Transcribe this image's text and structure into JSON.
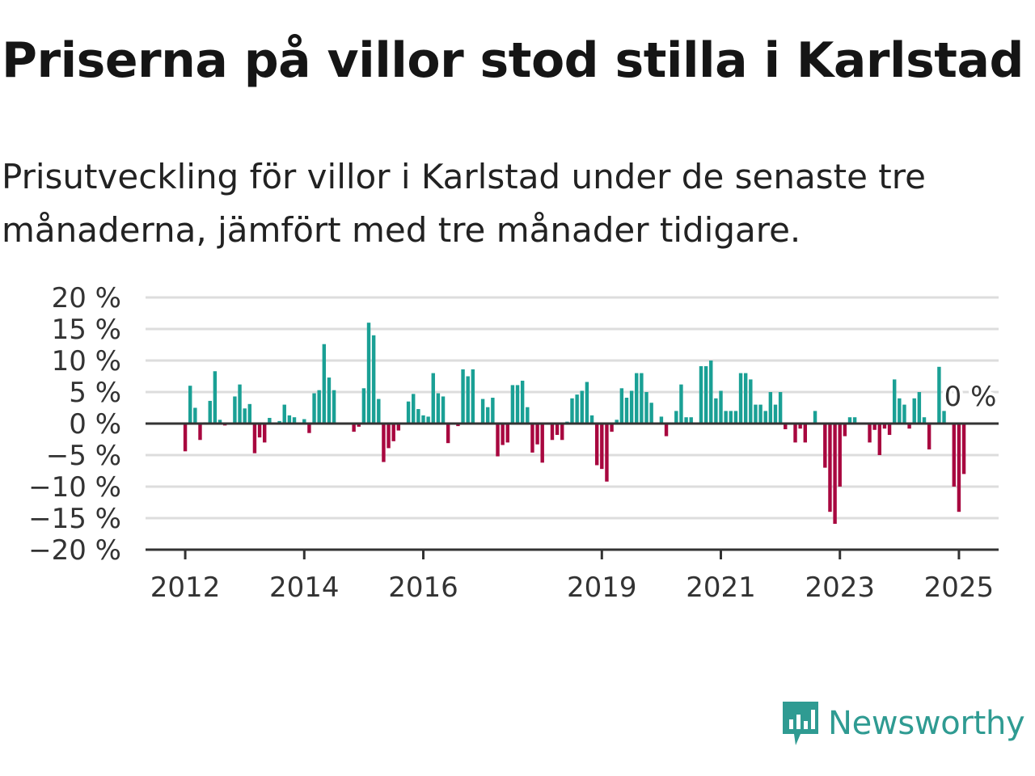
{
  "header": {
    "title": "Priserna på villor stod stilla i Karlstad",
    "subtitle": "Prisutveckling för villor i Karlstad under de senaste tre månaderna, jämfört med tre månader tidigare."
  },
  "brand": {
    "name": "Newsworthy",
    "icon": "newsworthy-logo-icon",
    "color": "#2f9b92"
  },
  "chart_data": {
    "type": "bar",
    "ylim": [
      -20,
      20
    ],
    "yticks": [
      20,
      15,
      10,
      5,
      0,
      -5,
      -10,
      -15,
      -20
    ],
    "ytick_labels": [
      "20 %",
      "15 %",
      "10 %",
      "5 %",
      "0 %",
      "−5 %",
      "−10 %",
      "−15 %",
      "−20 %"
    ],
    "xlim": [
      "2011-05",
      "2025-09"
    ],
    "xticks": [
      {
        "label": "2012",
        "date": "2012-01"
      },
      {
        "label": "2014",
        "date": "2014-01"
      },
      {
        "label": "2016",
        "date": "2016-01"
      },
      {
        "label": "2019",
        "date": "2019-01"
      },
      {
        "label": "2021",
        "date": "2021-01"
      },
      {
        "label": "2023",
        "date": "2023-01"
      },
      {
        "label": "2025",
        "date": "2025-01"
      }
    ],
    "grid": true,
    "positive_color": "#1aa095",
    "negative_color": "#a8073f",
    "annotation": {
      "text": "0 %",
      "date": "2024-11"
    },
    "series": [
      {
        "x": [
          "2012-01",
          "2012-02",
          "2012-03",
          "2012-04",
          "2012-05",
          "2012-06",
          "2012-07",
          "2012-08",
          "2012-09",
          "2012-10",
          "2012-11",
          "2012-12",
          "2013-01",
          "2013-02",
          "2013-03",
          "2013-04",
          "2013-05",
          "2013-06",
          "2013-07",
          "2013-08",
          "2013-09",
          "2013-10",
          "2013-11",
          "2013-12",
          "2014-01",
          "2014-02",
          "2014-03",
          "2014-04",
          "2014-05",
          "2014-06",
          "2014-07",
          "2014-08",
          "2014-09",
          "2014-10",
          "2014-11",
          "2014-12",
          "2015-01",
          "2015-02",
          "2015-03",
          "2015-04",
          "2015-05",
          "2015-06",
          "2015-07",
          "2015-08",
          "2015-09",
          "2015-10",
          "2015-11",
          "2015-12",
          "2016-01",
          "2016-02",
          "2016-03",
          "2016-04",
          "2016-05",
          "2016-06",
          "2016-07",
          "2016-08",
          "2016-09",
          "2016-10",
          "2016-11",
          "2016-12",
          "2017-01",
          "2017-02",
          "2017-03",
          "2017-04",
          "2017-05",
          "2017-06",
          "2017-07",
          "2017-08",
          "2017-09",
          "2017-10",
          "2017-11",
          "2017-12",
          "2018-01",
          "2018-02",
          "2018-03",
          "2018-04",
          "2018-05",
          "2018-06",
          "2018-07",
          "2018-08",
          "2018-09",
          "2018-10",
          "2018-11",
          "2018-12",
          "2019-01",
          "2019-02",
          "2019-03",
          "2019-04",
          "2019-05",
          "2019-06",
          "2019-07",
          "2019-08",
          "2019-09",
          "2019-10",
          "2019-11",
          "2019-12",
          "2020-01",
          "2020-02",
          "2020-03",
          "2020-04",
          "2020-05",
          "2020-06",
          "2020-07",
          "2020-08",
          "2020-09",
          "2020-10",
          "2020-11",
          "2020-12",
          "2021-01",
          "2021-02",
          "2021-03",
          "2021-04",
          "2021-05",
          "2021-06",
          "2021-07",
          "2021-08",
          "2021-09",
          "2021-10",
          "2021-11",
          "2021-12",
          "2022-01",
          "2022-02",
          "2022-03",
          "2022-04",
          "2022-05",
          "2022-06",
          "2022-07",
          "2022-08",
          "2022-09",
          "2022-10",
          "2022-11",
          "2022-12",
          "2023-01",
          "2023-02",
          "2023-03",
          "2023-04",
          "2023-05",
          "2023-06",
          "2023-07",
          "2023-08",
          "2023-09",
          "2023-10",
          "2023-11",
          "2023-12",
          "2024-01",
          "2024-02",
          "2024-03",
          "2024-04",
          "2024-05",
          "2024-06",
          "2024-07",
          "2024-08",
          "2024-09",
          "2024-10",
          "2024-11",
          "2024-12",
          "2025-01",
          "2025-02"
        ],
        "values": [
          -4.4,
          6.0,
          2.5,
          -2.6,
          0.2,
          3.6,
          8.3,
          0.6,
          -0.3,
          0.0,
          4.3,
          6.2,
          2.4,
          3.1,
          -4.7,
          -2.2,
          -3.0,
          0.9,
          0.0,
          0.4,
          3.0,
          1.3,
          1.0,
          0.0,
          0.7,
          -1.5,
          4.8,
          5.3,
          12.6,
          7.3,
          5.3,
          0.0,
          0.0,
          0.0,
          -1.3,
          -0.5,
          5.6,
          16.0,
          14.0,
          3.9,
          -6.1,
          -3.9,
          -2.8,
          -1.1,
          0.0,
          3.5,
          4.7,
          2.3,
          1.3,
          1.1,
          8.0,
          4.8,
          4.3,
          -3.1,
          0.0,
          -0.4,
          8.6,
          7.5,
          8.6,
          0.0,
          3.9,
          2.6,
          4.1,
          -5.2,
          -3.4,
          -3.0,
          6.1,
          6.1,
          6.8,
          2.6,
          -4.6,
          -3.3,
          -6.2,
          0.0,
          -2.6,
          -1.8,
          -2.6,
          0.3,
          4.0,
          4.6,
          5.2,
          6.6,
          1.3,
          -6.6,
          -7.2,
          -9.2,
          -1.3,
          0.6,
          5.6,
          4.1,
          5.2,
          8.0,
          8.0,
          5.0,
          3.3,
          0.0,
          1.1,
          -2.0,
          0.0,
          2.0,
          6.2,
          1.0,
          1.0,
          0.0,
          9.1,
          9.1,
          10.0,
          4.0,
          5.2,
          2.0,
          2.0,
          2.0,
          8.0,
          8.0,
          7.0,
          3.0,
          3.0,
          2.0,
          5.0,
          3.0,
          5.0,
          -0.9,
          0.0,
          -3.0,
          -0.8,
          -3.0,
          0.0,
          2.0,
          0.0,
          -7.0,
          -14.0,
          -15.9,
          -10.0,
          -2.0,
          1.0,
          1.0,
          0.0,
          0.0,
          -3.0,
          -1.0,
          -5.0,
          -0.8,
          -1.8,
          7.0,
          4.0,
          3.0,
          -0.8,
          4.0,
          5.0,
          1.0,
          -4.1,
          0.0,
          9.0,
          2.0,
          0.0,
          -10.0,
          -14.0,
          -8.0
        ]
      }
    ]
  }
}
